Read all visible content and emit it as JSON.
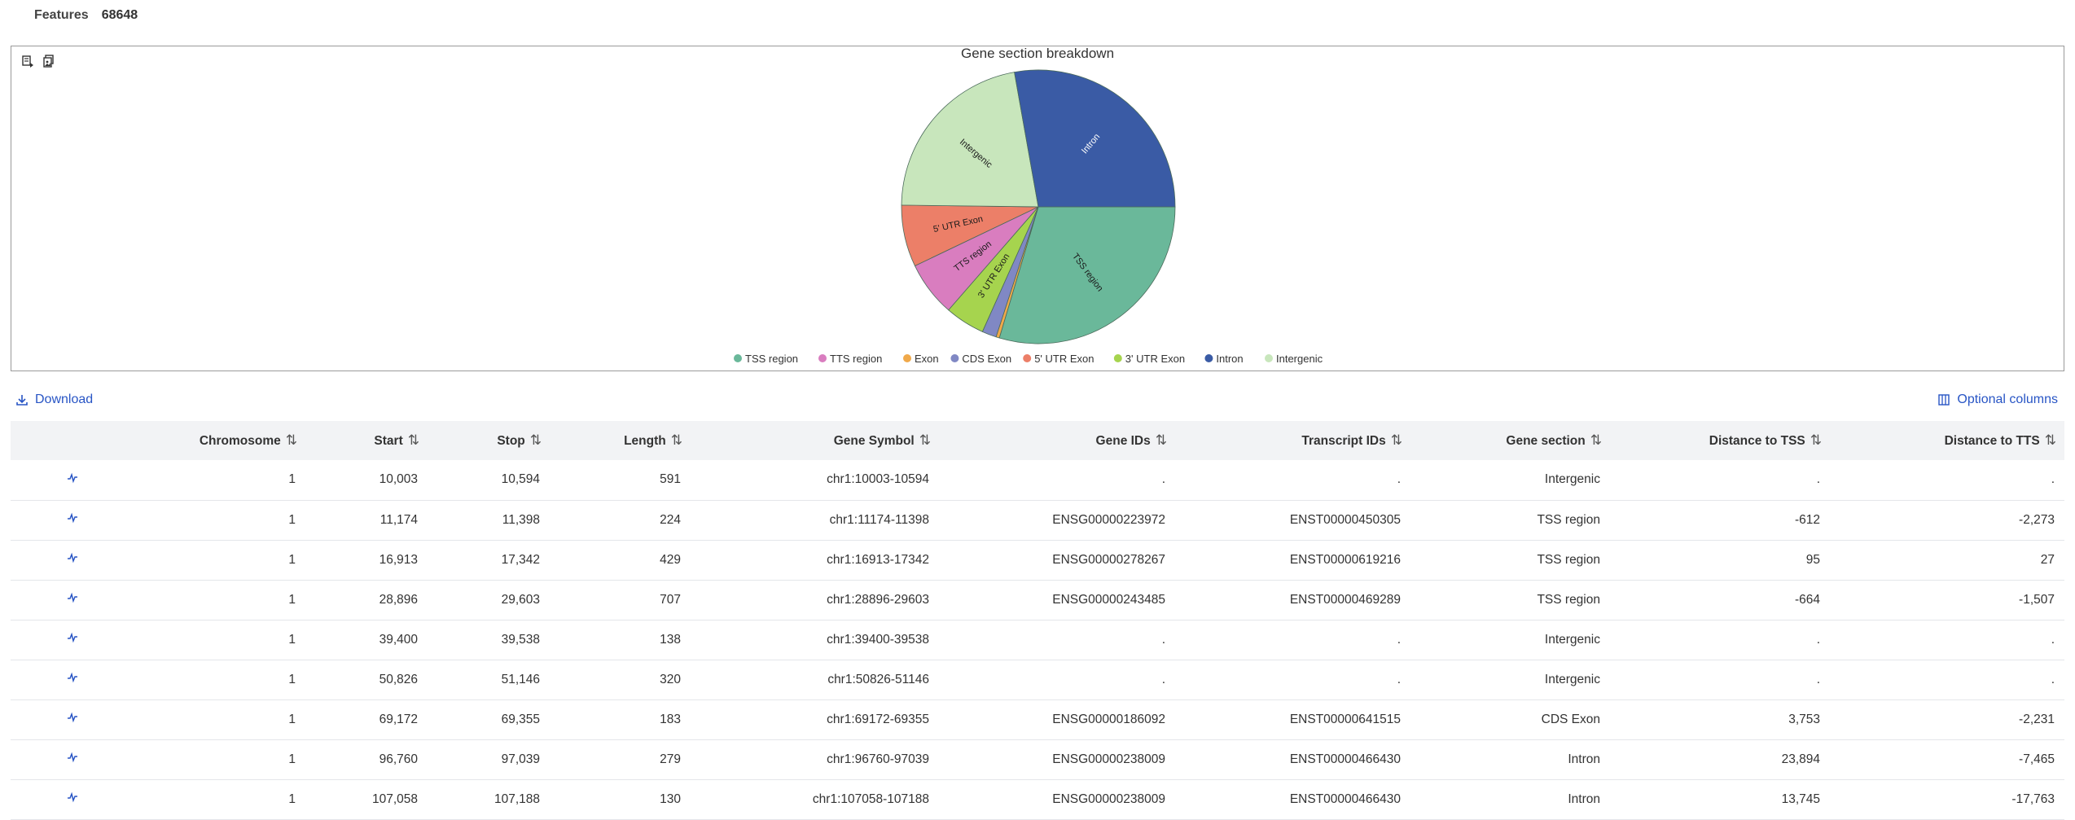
{
  "summary": {
    "features_label": "Features",
    "features_value": "68648"
  },
  "chart_tools": {
    "icon1": "export-data-icon",
    "icon2": "copy-image-icon"
  },
  "actions": {
    "download_label": "Download",
    "optional_columns_label": "Optional columns"
  },
  "colors": {
    "accent": "#2855c5",
    "header_bg": "#f2f3f5",
    "panel_border": "#9a9a9a"
  },
  "chart_data": {
    "type": "pie",
    "title": "Gene section breakdown",
    "legend_position": "bottom",
    "slices": [
      {
        "name": "TSS region",
        "value": 29.6,
        "color": "#6ab89a",
        "label": "TSS region",
        "label_color": "#1a1a1a"
      },
      {
        "name": "Exon",
        "value": 0.4,
        "color": "#f0a94a",
        "label": "",
        "label_color": "#1a1a1a"
      },
      {
        "name": "CDS Exon",
        "value": 1.7,
        "color": "#8088c4",
        "label": "",
        "label_color": "#1a1a1a"
      },
      {
        "name": "3' UTR Exon",
        "value": 4.7,
        "color": "#a6d44e",
        "label": "3' UTR Exon",
        "label_color": "#1a1a1a"
      },
      {
        "name": "TTS region",
        "value": 6.5,
        "color": "#d97dbf",
        "label": "TTS region",
        "label_color": "#1a1a1a"
      },
      {
        "name": "5' UTR Exon",
        "value": 7.3,
        "color": "#ec7f68",
        "label": "5' UTR Exon",
        "label_color": "#1a1a1a"
      },
      {
        "name": "Intergenic",
        "value": 22.0,
        "color": "#c8e6bc",
        "label": "Intergenic",
        "label_color": "#1a1a1a"
      },
      {
        "name": "Intron",
        "value": 27.8,
        "color": "#3a5ba5",
        "label": "Intron",
        "label_color": "#ffffff"
      }
    ],
    "legend": [
      {
        "name": "TSS region",
        "color": "#6ab89a"
      },
      {
        "name": "TTS region",
        "color": "#d97dbf"
      },
      {
        "name": "Exon",
        "color": "#f0a94a"
      },
      {
        "name": "CDS Exon",
        "color": "#8088c4"
      },
      {
        "name": "5' UTR Exon",
        "color": "#ec7f68"
      },
      {
        "name": "3' UTR Exon",
        "color": "#a6d44e"
      },
      {
        "name": "Intron",
        "color": "#3a5ba5"
      },
      {
        "name": "Intergenic",
        "color": "#c8e6bc"
      }
    ]
  },
  "table": {
    "columns": [
      {
        "key": "chromosome",
        "label": "Chromosome"
      },
      {
        "key": "start",
        "label": "Start"
      },
      {
        "key": "stop",
        "label": "Stop"
      },
      {
        "key": "length",
        "label": "Length"
      },
      {
        "key": "gene_symbol",
        "label": "Gene Symbol"
      },
      {
        "key": "gene_ids",
        "label": "Gene IDs"
      },
      {
        "key": "transcript_ids",
        "label": "Transcript IDs"
      },
      {
        "key": "gene_section",
        "label": "Gene section"
      },
      {
        "key": "distance_tss",
        "label": "Distance to TSS"
      },
      {
        "key": "distance_tts",
        "label": "Distance to TTS"
      }
    ],
    "sort_glyph": "⇅",
    "rows": [
      [
        "1",
        "10,003",
        "10,594",
        "591",
        "chr1:10003-10594",
        ".",
        ".",
        "Intergenic",
        ".",
        "."
      ],
      [
        "1",
        "11,174",
        "11,398",
        "224",
        "chr1:11174-11398",
        "ENSG00000223972",
        "ENST00000450305",
        "TSS region",
        "-612",
        "-2,273"
      ],
      [
        "1",
        "16,913",
        "17,342",
        "429",
        "chr1:16913-17342",
        "ENSG00000278267",
        "ENST00000619216",
        "TSS region",
        "95",
        "27"
      ],
      [
        "1",
        "28,896",
        "29,603",
        "707",
        "chr1:28896-29603",
        "ENSG00000243485",
        "ENST00000469289",
        "TSS region",
        "-664",
        "-1,507"
      ],
      [
        "1",
        "39,400",
        "39,538",
        "138",
        "chr1:39400-39538",
        ".",
        ".",
        "Intergenic",
        ".",
        "."
      ],
      [
        "1",
        "50,826",
        "51,146",
        "320",
        "chr1:50826-51146",
        ".",
        ".",
        "Intergenic",
        ".",
        "."
      ],
      [
        "1",
        "69,172",
        "69,355",
        "183",
        "chr1:69172-69355",
        "ENSG00000186092",
        "ENST00000641515",
        "CDS Exon",
        "3,753",
        "-2,231"
      ],
      [
        "1",
        "96,760",
        "97,039",
        "279",
        "chr1:96760-97039",
        "ENSG00000238009",
        "ENST00000466430",
        "Intron",
        "23,894",
        "-7,465"
      ],
      [
        "1",
        "107,058",
        "107,188",
        "130",
        "chr1:107058-107188",
        "ENSG00000238009",
        "ENST00000466430",
        "Intron",
        "13,745",
        "-17,763"
      ]
    ]
  }
}
